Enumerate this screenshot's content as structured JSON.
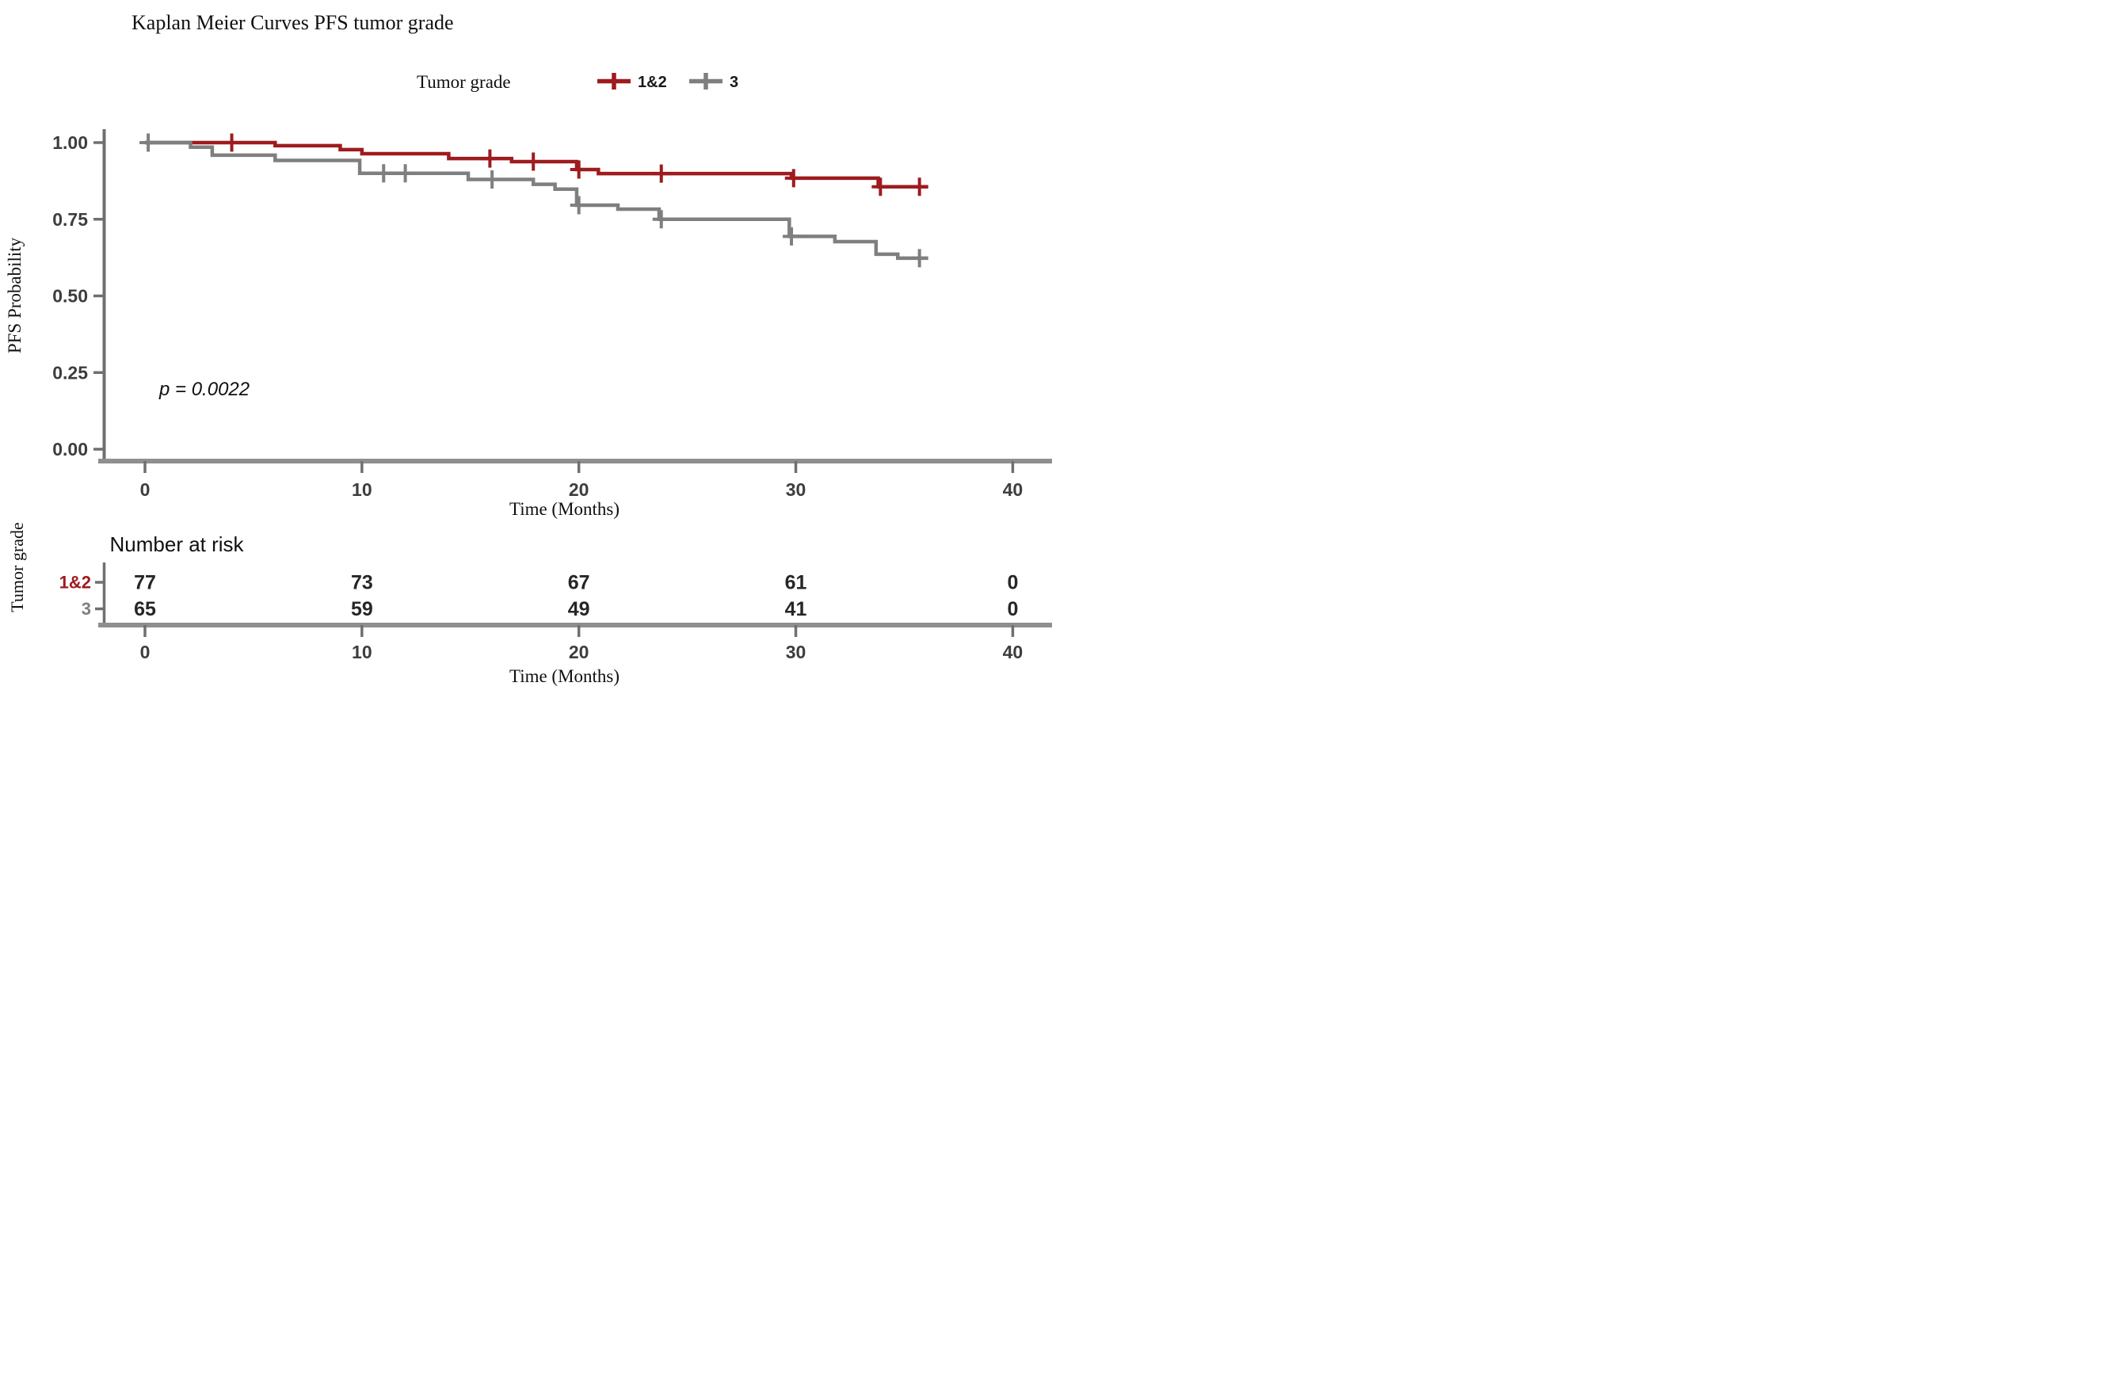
{
  "title": "Kaplan Meier Curves PFS tumor grade",
  "legend": {
    "title": "Tumor grade",
    "items": [
      {
        "label": "1&2",
        "color": "#9E1B1E"
      },
      {
        "label": "3",
        "color": "#7F7F7F"
      }
    ]
  },
  "axes": {
    "y_label": "PFS Probability",
    "x_label": "Time (Months)",
    "y_ticks": [
      {
        "value": 1.0,
        "label": "1.00"
      },
      {
        "value": 0.75,
        "label": "0.75"
      },
      {
        "value": 0.5,
        "label": "0.50"
      },
      {
        "value": 0.25,
        "label": "0.25"
      },
      {
        "value": 0.0,
        "label": "0.00"
      }
    ],
    "x_ticks": [
      {
        "value": 0,
        "label": "0"
      },
      {
        "value": 10,
        "label": "10"
      },
      {
        "value": 20,
        "label": "20"
      },
      {
        "value": 30,
        "label": "30"
      },
      {
        "value": 40,
        "label": "40"
      }
    ]
  },
  "annotation": {
    "p_value": "p = 0.0022"
  },
  "risk_table": {
    "header": "Number at risk",
    "group_label": "Tumor grade",
    "time_label": "Time (Months)",
    "columns": [
      0,
      10,
      20,
      30,
      40
    ],
    "rows": [
      {
        "label": "1&2",
        "color": "#9E1B1E",
        "counts": [
          "77",
          "73",
          "67",
          "61",
          "0"
        ]
      },
      {
        "label": "3",
        "color": "#7F7F7F",
        "counts": [
          "65",
          "59",
          "49",
          "41",
          "0"
        ]
      }
    ]
  },
  "colors": {
    "grade_1_2": "#9E1B1E",
    "grade_3": "#7F7F7F",
    "axis_line": "#8F8F8F",
    "tick_text": "#3d3d3d"
  },
  "chart_data": {
    "type": "line",
    "variant": "kaplan_meier_step",
    "title": "Kaplan Meier Curves PFS tumor grade",
    "xlabel": "Time (Months)",
    "ylabel": "PFS Probability",
    "xlim": [
      0,
      42
    ],
    "ylim": [
      0,
      1
    ],
    "x_ticks": [
      0,
      10,
      20,
      30,
      40
    ],
    "y_ticks": [
      0,
      0.25,
      0.5,
      0.75,
      1
    ],
    "legend_position": "top-center",
    "legend_title": "Tumor grade",
    "p_value_annotation": "p = 0.0022",
    "series": [
      {
        "name": "1&2",
        "color": "#9E1B1E",
        "end_time": 36.1,
        "steps": [
          [
            0,
            1.0
          ],
          [
            6,
            0.99
          ],
          [
            9,
            0.977
          ],
          [
            10,
            0.964
          ],
          [
            14,
            0.948
          ],
          [
            16.9,
            0.938
          ],
          [
            19.9,
            0.912
          ],
          [
            20.9,
            0.899
          ],
          [
            29.8,
            0.884
          ],
          [
            33.8,
            0.856
          ]
        ],
        "censors": [
          [
            4,
            1.0
          ],
          [
            15.9,
            0.948
          ],
          [
            17.9,
            0.938
          ],
          [
            20,
            0.912
          ],
          [
            23.8,
            0.899
          ],
          [
            29.9,
            0.884
          ],
          [
            33.9,
            0.856
          ],
          [
            35.7,
            0.856
          ]
        ]
      },
      {
        "name": "3",
        "color": "#7F7F7F",
        "end_time": 36.1,
        "steps": [
          [
            0,
            1.0
          ],
          [
            2.1,
            0.985
          ],
          [
            3.1,
            0.959
          ],
          [
            6,
            0.942
          ],
          [
            9.9,
            0.9
          ],
          [
            14.9,
            0.88
          ],
          [
            17.9,
            0.864
          ],
          [
            18.9,
            0.848
          ],
          [
            19.9,
            0.796
          ],
          [
            21.8,
            0.783
          ],
          [
            23.7,
            0.75
          ],
          [
            29.7,
            0.694
          ],
          [
            31.8,
            0.677
          ],
          [
            33.7,
            0.636
          ],
          [
            34.7,
            0.623
          ]
        ],
        "censors": [
          [
            0.15,
            1.0
          ],
          [
            11,
            0.9
          ],
          [
            12,
            0.9
          ],
          [
            16,
            0.88
          ],
          [
            20,
            0.796
          ],
          [
            23.8,
            0.75
          ],
          [
            29.8,
            0.694
          ],
          [
            35.7,
            0.623
          ]
        ]
      }
    ],
    "number_at_risk": {
      "groups": [
        "1&2",
        "3"
      ],
      "times": [
        0,
        10,
        20,
        30,
        40
      ],
      "counts": [
        [
          77,
          73,
          67,
          61,
          0
        ],
        [
          65,
          59,
          49,
          41,
          0
        ]
      ]
    }
  }
}
